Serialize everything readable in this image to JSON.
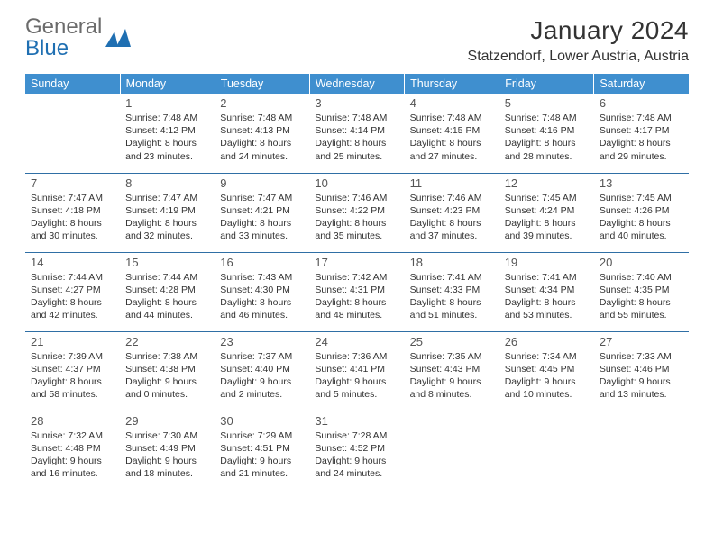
{
  "brand": {
    "word1": "General",
    "word2": "Blue"
  },
  "title": "January 2024",
  "location": "Statzendorf, Lower Austria, Austria",
  "colors": {
    "header_bg": "#3f8fcf",
    "header_text": "#ffffff",
    "rule": "#2f6fa5",
    "brand_grey": "#6b6b6b",
    "brand_blue": "#1f6fb2",
    "page_bg": "#ffffff",
    "body_text": "#333333"
  },
  "typography": {
    "title_fontsize": 28,
    "location_fontsize": 16,
    "dayheader_fontsize": 12.5,
    "daynum_fontsize": 13,
    "cell_fontsize": 10.5
  },
  "day_headers": [
    "Sunday",
    "Monday",
    "Tuesday",
    "Wednesday",
    "Thursday",
    "Friday",
    "Saturday"
  ],
  "weeks": [
    [
      null,
      {
        "n": "1",
        "sr": "7:48 AM",
        "ss": "4:12 PM",
        "dl": "8 hours and 23 minutes."
      },
      {
        "n": "2",
        "sr": "7:48 AM",
        "ss": "4:13 PM",
        "dl": "8 hours and 24 minutes."
      },
      {
        "n": "3",
        "sr": "7:48 AM",
        "ss": "4:14 PM",
        "dl": "8 hours and 25 minutes."
      },
      {
        "n": "4",
        "sr": "7:48 AM",
        "ss": "4:15 PM",
        "dl": "8 hours and 27 minutes."
      },
      {
        "n": "5",
        "sr": "7:48 AM",
        "ss": "4:16 PM",
        "dl": "8 hours and 28 minutes."
      },
      {
        "n": "6",
        "sr": "7:48 AM",
        "ss": "4:17 PM",
        "dl": "8 hours and 29 minutes."
      }
    ],
    [
      {
        "n": "7",
        "sr": "7:47 AM",
        "ss": "4:18 PM",
        "dl": "8 hours and 30 minutes."
      },
      {
        "n": "8",
        "sr": "7:47 AM",
        "ss": "4:19 PM",
        "dl": "8 hours and 32 minutes."
      },
      {
        "n": "9",
        "sr": "7:47 AM",
        "ss": "4:21 PM",
        "dl": "8 hours and 33 minutes."
      },
      {
        "n": "10",
        "sr": "7:46 AM",
        "ss": "4:22 PM",
        "dl": "8 hours and 35 minutes."
      },
      {
        "n": "11",
        "sr": "7:46 AM",
        "ss": "4:23 PM",
        "dl": "8 hours and 37 minutes."
      },
      {
        "n": "12",
        "sr": "7:45 AM",
        "ss": "4:24 PM",
        "dl": "8 hours and 39 minutes."
      },
      {
        "n": "13",
        "sr": "7:45 AM",
        "ss": "4:26 PM",
        "dl": "8 hours and 40 minutes."
      }
    ],
    [
      {
        "n": "14",
        "sr": "7:44 AM",
        "ss": "4:27 PM",
        "dl": "8 hours and 42 minutes."
      },
      {
        "n": "15",
        "sr": "7:44 AM",
        "ss": "4:28 PM",
        "dl": "8 hours and 44 minutes."
      },
      {
        "n": "16",
        "sr": "7:43 AM",
        "ss": "4:30 PM",
        "dl": "8 hours and 46 minutes."
      },
      {
        "n": "17",
        "sr": "7:42 AM",
        "ss": "4:31 PM",
        "dl": "8 hours and 48 minutes."
      },
      {
        "n": "18",
        "sr": "7:41 AM",
        "ss": "4:33 PM",
        "dl": "8 hours and 51 minutes."
      },
      {
        "n": "19",
        "sr": "7:41 AM",
        "ss": "4:34 PM",
        "dl": "8 hours and 53 minutes."
      },
      {
        "n": "20",
        "sr": "7:40 AM",
        "ss": "4:35 PM",
        "dl": "8 hours and 55 minutes."
      }
    ],
    [
      {
        "n": "21",
        "sr": "7:39 AM",
        "ss": "4:37 PM",
        "dl": "8 hours and 58 minutes."
      },
      {
        "n": "22",
        "sr": "7:38 AM",
        "ss": "4:38 PM",
        "dl": "9 hours and 0 minutes."
      },
      {
        "n": "23",
        "sr": "7:37 AM",
        "ss": "4:40 PM",
        "dl": "9 hours and 2 minutes."
      },
      {
        "n": "24",
        "sr": "7:36 AM",
        "ss": "4:41 PM",
        "dl": "9 hours and 5 minutes."
      },
      {
        "n": "25",
        "sr": "7:35 AM",
        "ss": "4:43 PM",
        "dl": "9 hours and 8 minutes."
      },
      {
        "n": "26",
        "sr": "7:34 AM",
        "ss": "4:45 PM",
        "dl": "9 hours and 10 minutes."
      },
      {
        "n": "27",
        "sr": "7:33 AM",
        "ss": "4:46 PM",
        "dl": "9 hours and 13 minutes."
      }
    ],
    [
      {
        "n": "28",
        "sr": "7:32 AM",
        "ss": "4:48 PM",
        "dl": "9 hours and 16 minutes."
      },
      {
        "n": "29",
        "sr": "7:30 AM",
        "ss": "4:49 PM",
        "dl": "9 hours and 18 minutes."
      },
      {
        "n": "30",
        "sr": "7:29 AM",
        "ss": "4:51 PM",
        "dl": "9 hours and 21 minutes."
      },
      {
        "n": "31",
        "sr": "7:28 AM",
        "ss": "4:52 PM",
        "dl": "9 hours and 24 minutes."
      },
      null,
      null,
      null
    ]
  ],
  "labels": {
    "sunrise": "Sunrise:",
    "sunset": "Sunset:",
    "daylight": "Daylight:"
  }
}
